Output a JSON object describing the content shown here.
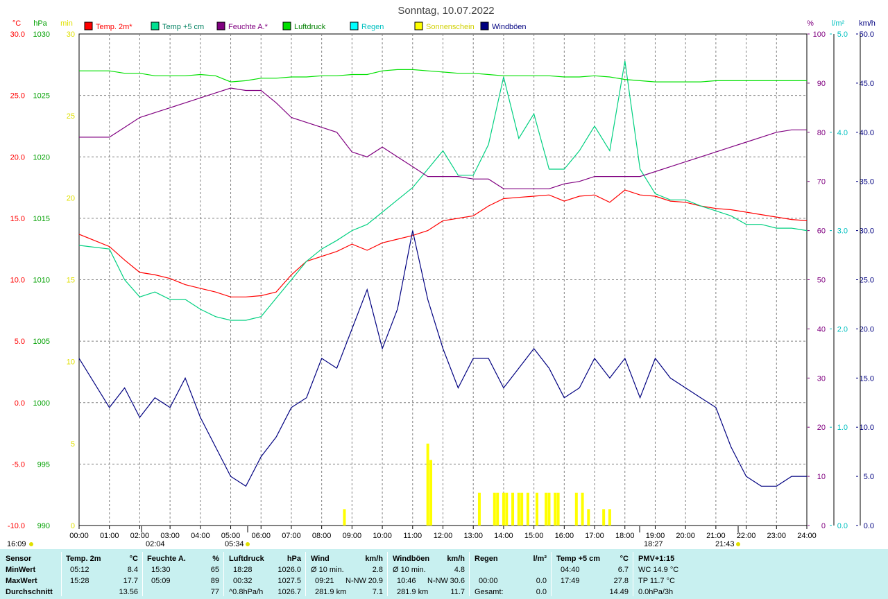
{
  "title": "Sonntag, 10.07.2022",
  "axes": {
    "temp": {
      "unit": "°C",
      "ticks": [
        "30.0",
        "25.0",
        "20.0",
        "15.0",
        "10.0",
        "5.0",
        "0.0",
        "-5.0",
        "-10.0"
      ],
      "color": "#ff0000"
    },
    "press": {
      "unit": "hPa",
      "ticks": [
        "1030",
        "1025",
        "1020",
        "1015",
        "1010",
        "1005",
        "1000",
        "995",
        "990"
      ],
      "color": "#00a000"
    },
    "sun": {
      "unit": "min",
      "ticks": [
        "30",
        "25",
        "20",
        "15",
        "10",
        "5",
        "0"
      ],
      "color": "#e0e000"
    },
    "hum": {
      "unit": "%",
      "ticks": [
        "100",
        "90",
        "80",
        "70",
        "60",
        "50",
        "40",
        "30",
        "20",
        "10",
        "0"
      ],
      "color": "#800080"
    },
    "rain": {
      "unit": "l/m²",
      "ticks": [
        "5.0",
        "4.0",
        "3.0",
        "2.0",
        "1.0",
        "0.0"
      ],
      "color": "#00c0c0"
    },
    "wind": {
      "unit": "km/h",
      "ticks": [
        "50.0",
        "45.0",
        "40.0",
        "35.0",
        "30.0",
        "25.0",
        "20.0",
        "15.0",
        "10.0",
        "5.0",
        "0.0"
      ],
      "color": "#000080"
    }
  },
  "x_ticks": [
    "00:00",
    "01:00",
    "02:00",
    "03:00",
    "04:00",
    "05:00",
    "06:00",
    "07:00",
    "08:00",
    "09:00",
    "10:00",
    "11:00",
    "12:00",
    "13:00",
    "14:00",
    "15:00",
    "16:00",
    "17:00",
    "18:00",
    "19:00",
    "20:00",
    "21:00",
    "22:00",
    "23:00",
    "24:00"
  ],
  "sun_events": {
    "moonrise": "16:09",
    "dawn": "02:04",
    "sunrise": "05:34",
    "sunset": "18:27",
    "moonset": "21:43"
  },
  "legend": [
    {
      "label": "Temp. 2m*",
      "color": "#ff0000",
      "text_color": "#ff0000"
    },
    {
      "label": "Temp +5 cm",
      "color": "#00e090",
      "text_color": "#008060"
    },
    {
      "label": "Feuchte A.*",
      "color": "#800080",
      "text_color": "#800080"
    },
    {
      "label": "Luftdruck",
      "color": "#00e000",
      "text_color": "#008000"
    },
    {
      "label": "Regen",
      "color": "#00ffff",
      "text_color": "#00c0c0"
    },
    {
      "label": "Sonnenschein",
      "color": "#ffff00",
      "text_color": "#d0d000"
    },
    {
      "label": "Windböen",
      "color": "#000080",
      "text_color": "#000080"
    }
  ],
  "chart_data": {
    "type": "line",
    "title": "Sonntag, 10.07.2022",
    "x_unit": "hour",
    "xlim": [
      0,
      24
    ],
    "series": [
      {
        "name": "Temp. 2m*",
        "axis": "temp",
        "ylim": [
          -10,
          30
        ],
        "x": [
          0,
          1,
          1.5,
          2,
          2.5,
          3,
          3.5,
          4,
          4.5,
          5,
          5.5,
          6,
          6.5,
          7,
          7.5,
          8,
          8.5,
          9,
          9.5,
          10,
          10.5,
          11,
          11.5,
          12,
          12.5,
          13,
          13.5,
          14,
          14.5,
          15,
          15.5,
          16,
          16.5,
          17,
          17.5,
          18,
          18.5,
          19,
          19.5,
          20,
          20.5,
          21,
          21.5,
          22,
          22.5,
          23,
          23.5,
          24
        ],
        "values": [
          13.7,
          12.7,
          11.6,
          10.6,
          10.4,
          10.1,
          9.6,
          9.3,
          9.0,
          8.6,
          8.6,
          8.7,
          9.0,
          10.4,
          11.5,
          11.9,
          12.3,
          12.9,
          12.4,
          13.0,
          13.3,
          13.6,
          14.0,
          14.8,
          15.0,
          15.2,
          16.0,
          16.6,
          16.7,
          16.8,
          16.9,
          16.4,
          16.8,
          16.9,
          16.3,
          17.3,
          16.9,
          16.8,
          16.4,
          16.3,
          16.0,
          15.8,
          15.7,
          15.5,
          15.3,
          15.1,
          14.9,
          14.8
        ]
      },
      {
        "name": "Temp +5 cm",
        "axis": "temp",
        "ylim": [
          -10,
          30
        ],
        "x": [
          0,
          1,
          1.5,
          2,
          2.5,
          3,
          3.5,
          4,
          4.5,
          5,
          5.5,
          6,
          6.5,
          7,
          7.5,
          8,
          8.5,
          9,
          9.5,
          10,
          10.5,
          11,
          11.5,
          12,
          12.5,
          13,
          13.5,
          14,
          14.5,
          15,
          15.5,
          16,
          16.5,
          17,
          17.5,
          18,
          18.5,
          19,
          19.5,
          20,
          20.5,
          21,
          21.5,
          22,
          22.5,
          23,
          23.5,
          24
        ],
        "values": [
          12.8,
          12.5,
          10.0,
          8.6,
          9.0,
          8.4,
          8.4,
          7.6,
          7.0,
          6.7,
          6.7,
          7.0,
          8.5,
          10.0,
          11.5,
          12.5,
          13.2,
          14.0,
          14.5,
          15.5,
          16.5,
          17.5,
          19.0,
          20.5,
          18.5,
          18.5,
          21.0,
          26.5,
          21.5,
          23.5,
          19.0,
          19.0,
          20.5,
          22.5,
          20.5,
          27.8,
          19.0,
          17.0,
          16.5,
          16.5,
          16.0,
          15.6,
          15.2,
          14.5,
          14.5,
          14.2,
          14.2,
          14.0
        ]
      },
      {
        "name": "Feuchte A.*",
        "axis": "hum",
        "ylim": [
          0,
          100
        ],
        "x": [
          0,
          1,
          1.5,
          2,
          2.5,
          3,
          3.5,
          4,
          4.5,
          5,
          5.5,
          6,
          6.5,
          7,
          7.5,
          8,
          8.5,
          9,
          9.5,
          10,
          10.5,
          11,
          11.5,
          12,
          12.5,
          13,
          13.5,
          14,
          14.5,
          15,
          15.5,
          16,
          16.5,
          17,
          17.5,
          18,
          18.5,
          19,
          19.5,
          20,
          20.5,
          21,
          21.5,
          22,
          22.5,
          23,
          23.5,
          24
        ],
        "values": [
          79,
          79,
          81,
          83,
          84,
          85,
          86,
          87,
          88,
          89,
          88.5,
          88.5,
          86,
          83,
          82,
          81,
          80,
          76,
          75,
          77,
          75,
          73,
          71,
          71,
          71,
          70.5,
          70.5,
          68.5,
          68.5,
          68.5,
          68.5,
          69.5,
          70,
          71,
          71,
          71,
          71,
          72,
          73,
          74,
          75,
          76,
          77,
          78,
          79,
          80,
          80.5,
          80.5
        ]
      },
      {
        "name": "Luftdruck",
        "axis": "press",
        "ylim": [
          990,
          1030
        ],
        "x": [
          0,
          1,
          1.5,
          2,
          2.5,
          3,
          3.5,
          4,
          4.5,
          5,
          5.5,
          6,
          6.5,
          7,
          7.5,
          8,
          8.5,
          9,
          9.5,
          10,
          10.5,
          11,
          11.5,
          12,
          12.5,
          13,
          13.5,
          14,
          14.5,
          15,
          15.5,
          16,
          16.5,
          17,
          17.5,
          18,
          18.5,
          19,
          19.5,
          20,
          20.5,
          21,
          21.5,
          22,
          22.5,
          23,
          23.5,
          24
        ],
        "values": [
          1027.0,
          1027.0,
          1026.8,
          1026.8,
          1026.6,
          1026.6,
          1026.6,
          1026.7,
          1026.6,
          1026.1,
          1026.2,
          1026.4,
          1026.4,
          1026.5,
          1026.5,
          1026.6,
          1026.6,
          1026.7,
          1026.7,
          1027.0,
          1027.1,
          1027.1,
          1027.0,
          1026.9,
          1026.8,
          1026.8,
          1026.7,
          1026.6,
          1026.6,
          1026.6,
          1026.6,
          1026.5,
          1026.5,
          1026.6,
          1026.5,
          1026.3,
          1026.2,
          1026.1,
          1026.1,
          1026.1,
          1026.1,
          1026.2,
          1026.2,
          1026.2,
          1026.2,
          1026.2,
          1026.2,
          1026.2
        ]
      },
      {
        "name": "Windböen",
        "axis": "wind",
        "ylim": [
          0,
          50
        ],
        "x": [
          0,
          1,
          1.5,
          2,
          2.5,
          3,
          3.5,
          4,
          4.5,
          5,
          5.5,
          6,
          6.5,
          7,
          7.5,
          8,
          8.5,
          9,
          9.5,
          10,
          10.5,
          11,
          11.5,
          12,
          12.5,
          13,
          13.5,
          14,
          14.5,
          15,
          15.5,
          16,
          16.5,
          17,
          17.5,
          18,
          18.5,
          19,
          19.5,
          20,
          20.5,
          21,
          21.5,
          22,
          22.5,
          23,
          23.5,
          24
        ],
        "values": [
          17,
          12,
          14,
          11,
          13,
          12,
          15,
          11,
          8,
          5,
          4,
          7,
          9,
          12,
          13,
          17,
          16,
          20,
          24,
          18,
          22,
          30,
          23,
          18,
          14,
          17,
          17,
          14,
          16,
          18,
          16,
          13,
          14,
          17,
          15,
          17,
          13,
          17,
          15,
          14,
          13,
          12,
          8,
          5,
          4,
          4,
          5,
          5
        ]
      },
      {
        "name": "Sonnenschein",
        "axis": "sun",
        "ylim": [
          0,
          30
        ],
        "type": "bar",
        "x": [
          8.75,
          11.5,
          11.6,
          13.2,
          13.7,
          13.8,
          14.0,
          14.1,
          14.3,
          14.5,
          14.6,
          14.8,
          15.1,
          15.4,
          15.5,
          15.7,
          15.8,
          16.4,
          16.6,
          16.8,
          17.3,
          17.5
        ],
        "values": [
          1,
          5,
          4,
          2,
          2,
          2,
          2,
          2,
          2,
          2,
          2,
          2,
          2,
          2,
          2,
          2,
          2,
          2,
          2,
          1,
          1,
          1
        ]
      }
    ]
  },
  "stats": {
    "sensor": {
      "header": "Sensor",
      "rows": [
        "MinWert",
        "MaxWert",
        "Durchschnitt"
      ]
    },
    "temp2m": {
      "header": "Temp. 2m",
      "unit": "°C",
      "rows": [
        [
          "05:12",
          "8.4"
        ],
        [
          "15:28",
          "17.7"
        ],
        [
          "",
          "13.56"
        ]
      ]
    },
    "feuchte": {
      "header": "Feuchte A.",
      "unit": "%",
      "rows": [
        [
          "15:30",
          "65"
        ],
        [
          "05:09",
          "89"
        ],
        [
          "",
          "77"
        ]
      ]
    },
    "luftdruck": {
      "header": "Luftdruck",
      "unit": "hPa",
      "rows": [
        [
          "18:28",
          "1026.0"
        ],
        [
          "00:32",
          "1027.5"
        ],
        [
          "^0.8hPa/h",
          "1026.7"
        ]
      ]
    },
    "wind": {
      "header": "Wind",
      "unit": "km/h",
      "rows": [
        [
          "Ø 10 min.",
          "",
          "2.8"
        ],
        [
          "09:21",
          "N-NW",
          "20.9"
        ],
        [
          "281.9 km",
          "",
          "7.1"
        ]
      ]
    },
    "windboeen": {
      "header": "Windböen",
      "unit": "km/h",
      "rows": [
        [
          "Ø 10 min.",
          "",
          "4.8"
        ],
        [
          "10:46",
          "N-NW",
          "30.6"
        ],
        [
          "281.9 km",
          "",
          "11.7"
        ]
      ]
    },
    "regen": {
      "header": "Regen",
      "unit": "l/m²",
      "rows": [
        [
          "",
          ""
        ],
        [
          "00:00",
          "0.0"
        ],
        [
          "Gesamt:",
          "0.0"
        ]
      ]
    },
    "temp5cm": {
      "header": "Temp +5 cm",
      "unit": "°C",
      "rows": [
        [
          "04:40",
          "6.7"
        ],
        [
          "17:49",
          "27.8"
        ],
        [
          "",
          "14.49"
        ]
      ]
    },
    "pmv": {
      "header": "PMV+1:15",
      "rows": [
        "WC 14.9 °C",
        "TP 11.7 °C",
        "0.0hPa/3h"
      ]
    }
  }
}
